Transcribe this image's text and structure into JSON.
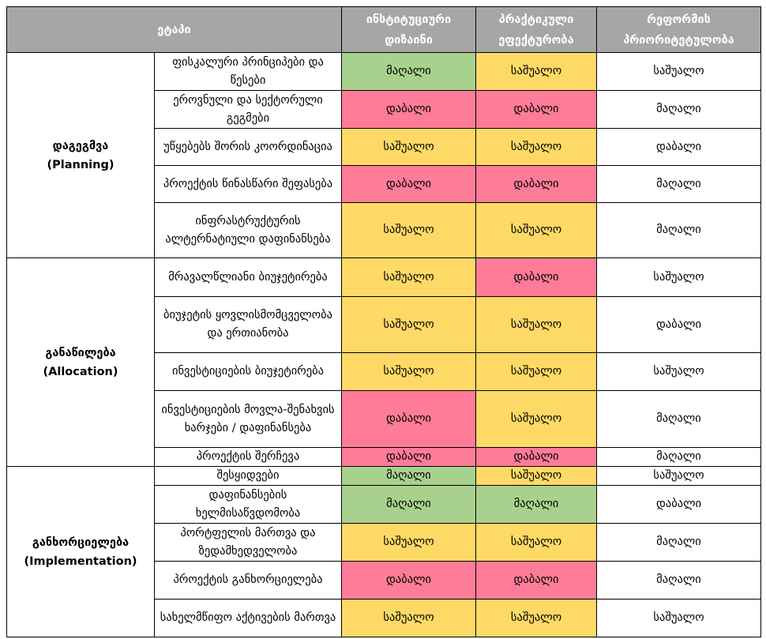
{
  "header": {
    "stage": "ეტაპი",
    "institutional": "ინსტიტუციური დიზაინი",
    "practical": "პრაქტიკული ეფექტურობა",
    "priority": "რეფორმის პრიორიტეტულობა"
  },
  "colors": {
    "მაღალი": "#A9D18E",
    "საშუალო": "#FFD966",
    "დაბალი": "#FF7C98"
  },
  "groups": [
    {
      "name": "დაგეგმვა",
      "name_en": "(Planning)",
      "rows": [
        {
          "item": "ფისკალური პრინციპები და წესები",
          "institutional": "მაღალი",
          "practical": "საშუალო",
          "priority": "საშუალო"
        },
        {
          "item": "ეროვნული და სექტორული გეგმები",
          "institutional": "დაბალი",
          "practical": "დაბალი",
          "priority": "მაღალი"
        },
        {
          "item": "უწყებებს შორის კოორდინაცია",
          "institutional": "საშუალო",
          "practical": "საშუალო",
          "priority": "დაბალი"
        },
        {
          "item": "პროექტის წინასწარი შეფასება",
          "institutional": "დაბალი",
          "practical": "დაბალი",
          "priority": "მაღალი"
        },
        {
          "item": "ინფრასტრუქტურის ალტერნატიული დაფინანსება",
          "institutional": "საშუალო",
          "practical": "საშუალო",
          "priority": "მაღალი"
        }
      ]
    },
    {
      "name": "განაწილება",
      "name_en": "(Allocation)",
      "rows": [
        {
          "item": "მრავალწლიანი ბიუჯეტირება",
          "institutional": "საშუალო",
          "practical": "დაბალი",
          "priority": "საშუალო"
        },
        {
          "item": "ბიუჯეტის ყოვლისმომცველობა და ერთიანობა",
          "institutional": "საშუალო",
          "practical": "საშუალო",
          "priority": "დაბალი"
        },
        {
          "item": "ინვესტიციების ბიუჯეტირება",
          "institutional": "საშუალო",
          "practical": "საშუალო",
          "priority": "საშუალო"
        },
        {
          "item": "ინვესტიციების მოვლა-შენახვის ხარჯები / დაფინანსება",
          "institutional": "დაბალი",
          "practical": "საშუალო",
          "priority": "მაღალი"
        },
        {
          "item": "პროექტის შერჩევა",
          "institutional": "დაბალი",
          "practical": "დაბალი",
          "priority": "მაღალი"
        }
      ]
    },
    {
      "name": "განხორციელება",
      "name_en": "(Implementation)",
      "rows": [
        {
          "item": "შესყიდვები",
          "institutional": "მაღალი",
          "practical": "საშუალო",
          "priority": "საშუალო"
        },
        {
          "item": "დაფინანსების ხელმისაწვდომობა",
          "institutional": "მაღალი",
          "practical": "მაღალი",
          "priority": "დაბალი"
        },
        {
          "item": "პორტფელის მართვა და ზედამხედველობა",
          "institutional": "საშუალო",
          "practical": "საშუალო",
          "priority": "მაღალი"
        },
        {
          "item": "პროექტის განხორციელება",
          "institutional": "დაბალი",
          "practical": "დაბალი",
          "priority": "მაღალი"
        },
        {
          "item": "სახელმწიფო აქტივების მართვა",
          "institutional": "საშუალო",
          "practical": "საშუალო",
          "priority": "საშუალო"
        }
      ]
    }
  ]
}
